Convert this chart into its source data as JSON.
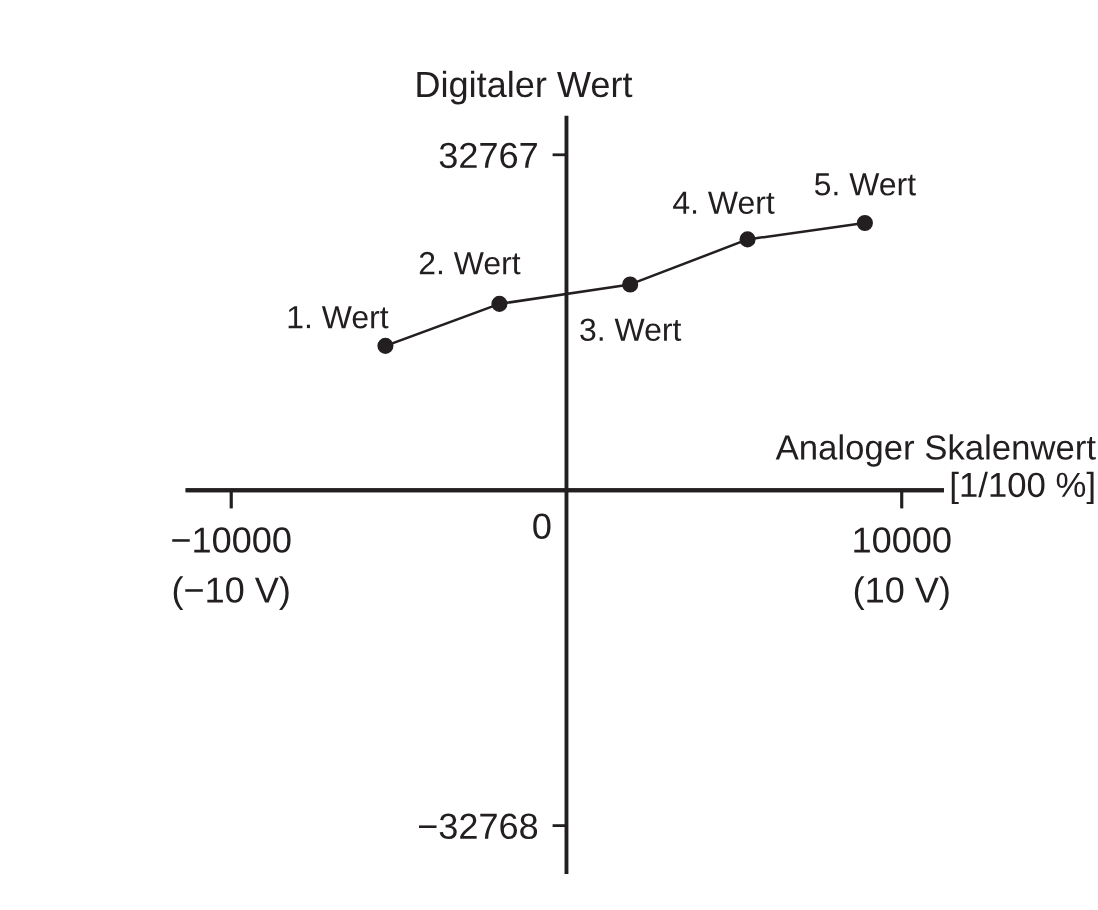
{
  "chart_data": {
    "type": "line",
    "x": [
      -5400,
      -2000,
      1900,
      5400,
      8900
    ],
    "values": [
      14100,
      18200,
      20100,
      24500,
      26100
    ],
    "color": "#231f20",
    "marker": "circle",
    "line_style": "solid",
    "xlabel": "Analoger Skalenwert\n[1/100 %]",
    "ylabel": "Digitaler Wert",
    "xlim": [
      -11300,
      11200
    ],
    "ylim": [
      -37300,
      36400
    ],
    "xticks": [
      {
        "value": -10000,
        "label": "−10000"
      },
      10000
    ],
    "x2lim": [
      -11.3,
      11.2
    ],
    "x2ticks": [
      {
        "value": -10,
        "label": "(−10 V)"
      },
      {
        "value": 10,
        "label": "(10 V)"
      }
    ],
    "yticks": [
      {
        "value": -32768,
        "label": "−32768"
      },
      32767
    ],
    "annotations": [
      {
        "text": "1. Wert",
        "x": -5400,
        "y": 14100
      },
      {
        "text": "2. Wert",
        "x": -2000,
        "y": 18200
      },
      {
        "text": "3. Wert",
        "x": 1900,
        "y": 20100
      },
      {
        "text": "4. Wert",
        "x": 5400,
        "y": 24500
      },
      {
        "text": "5. Wert",
        "x": 8900,
        "y": 26100
      },
      "0"
    ]
  }
}
